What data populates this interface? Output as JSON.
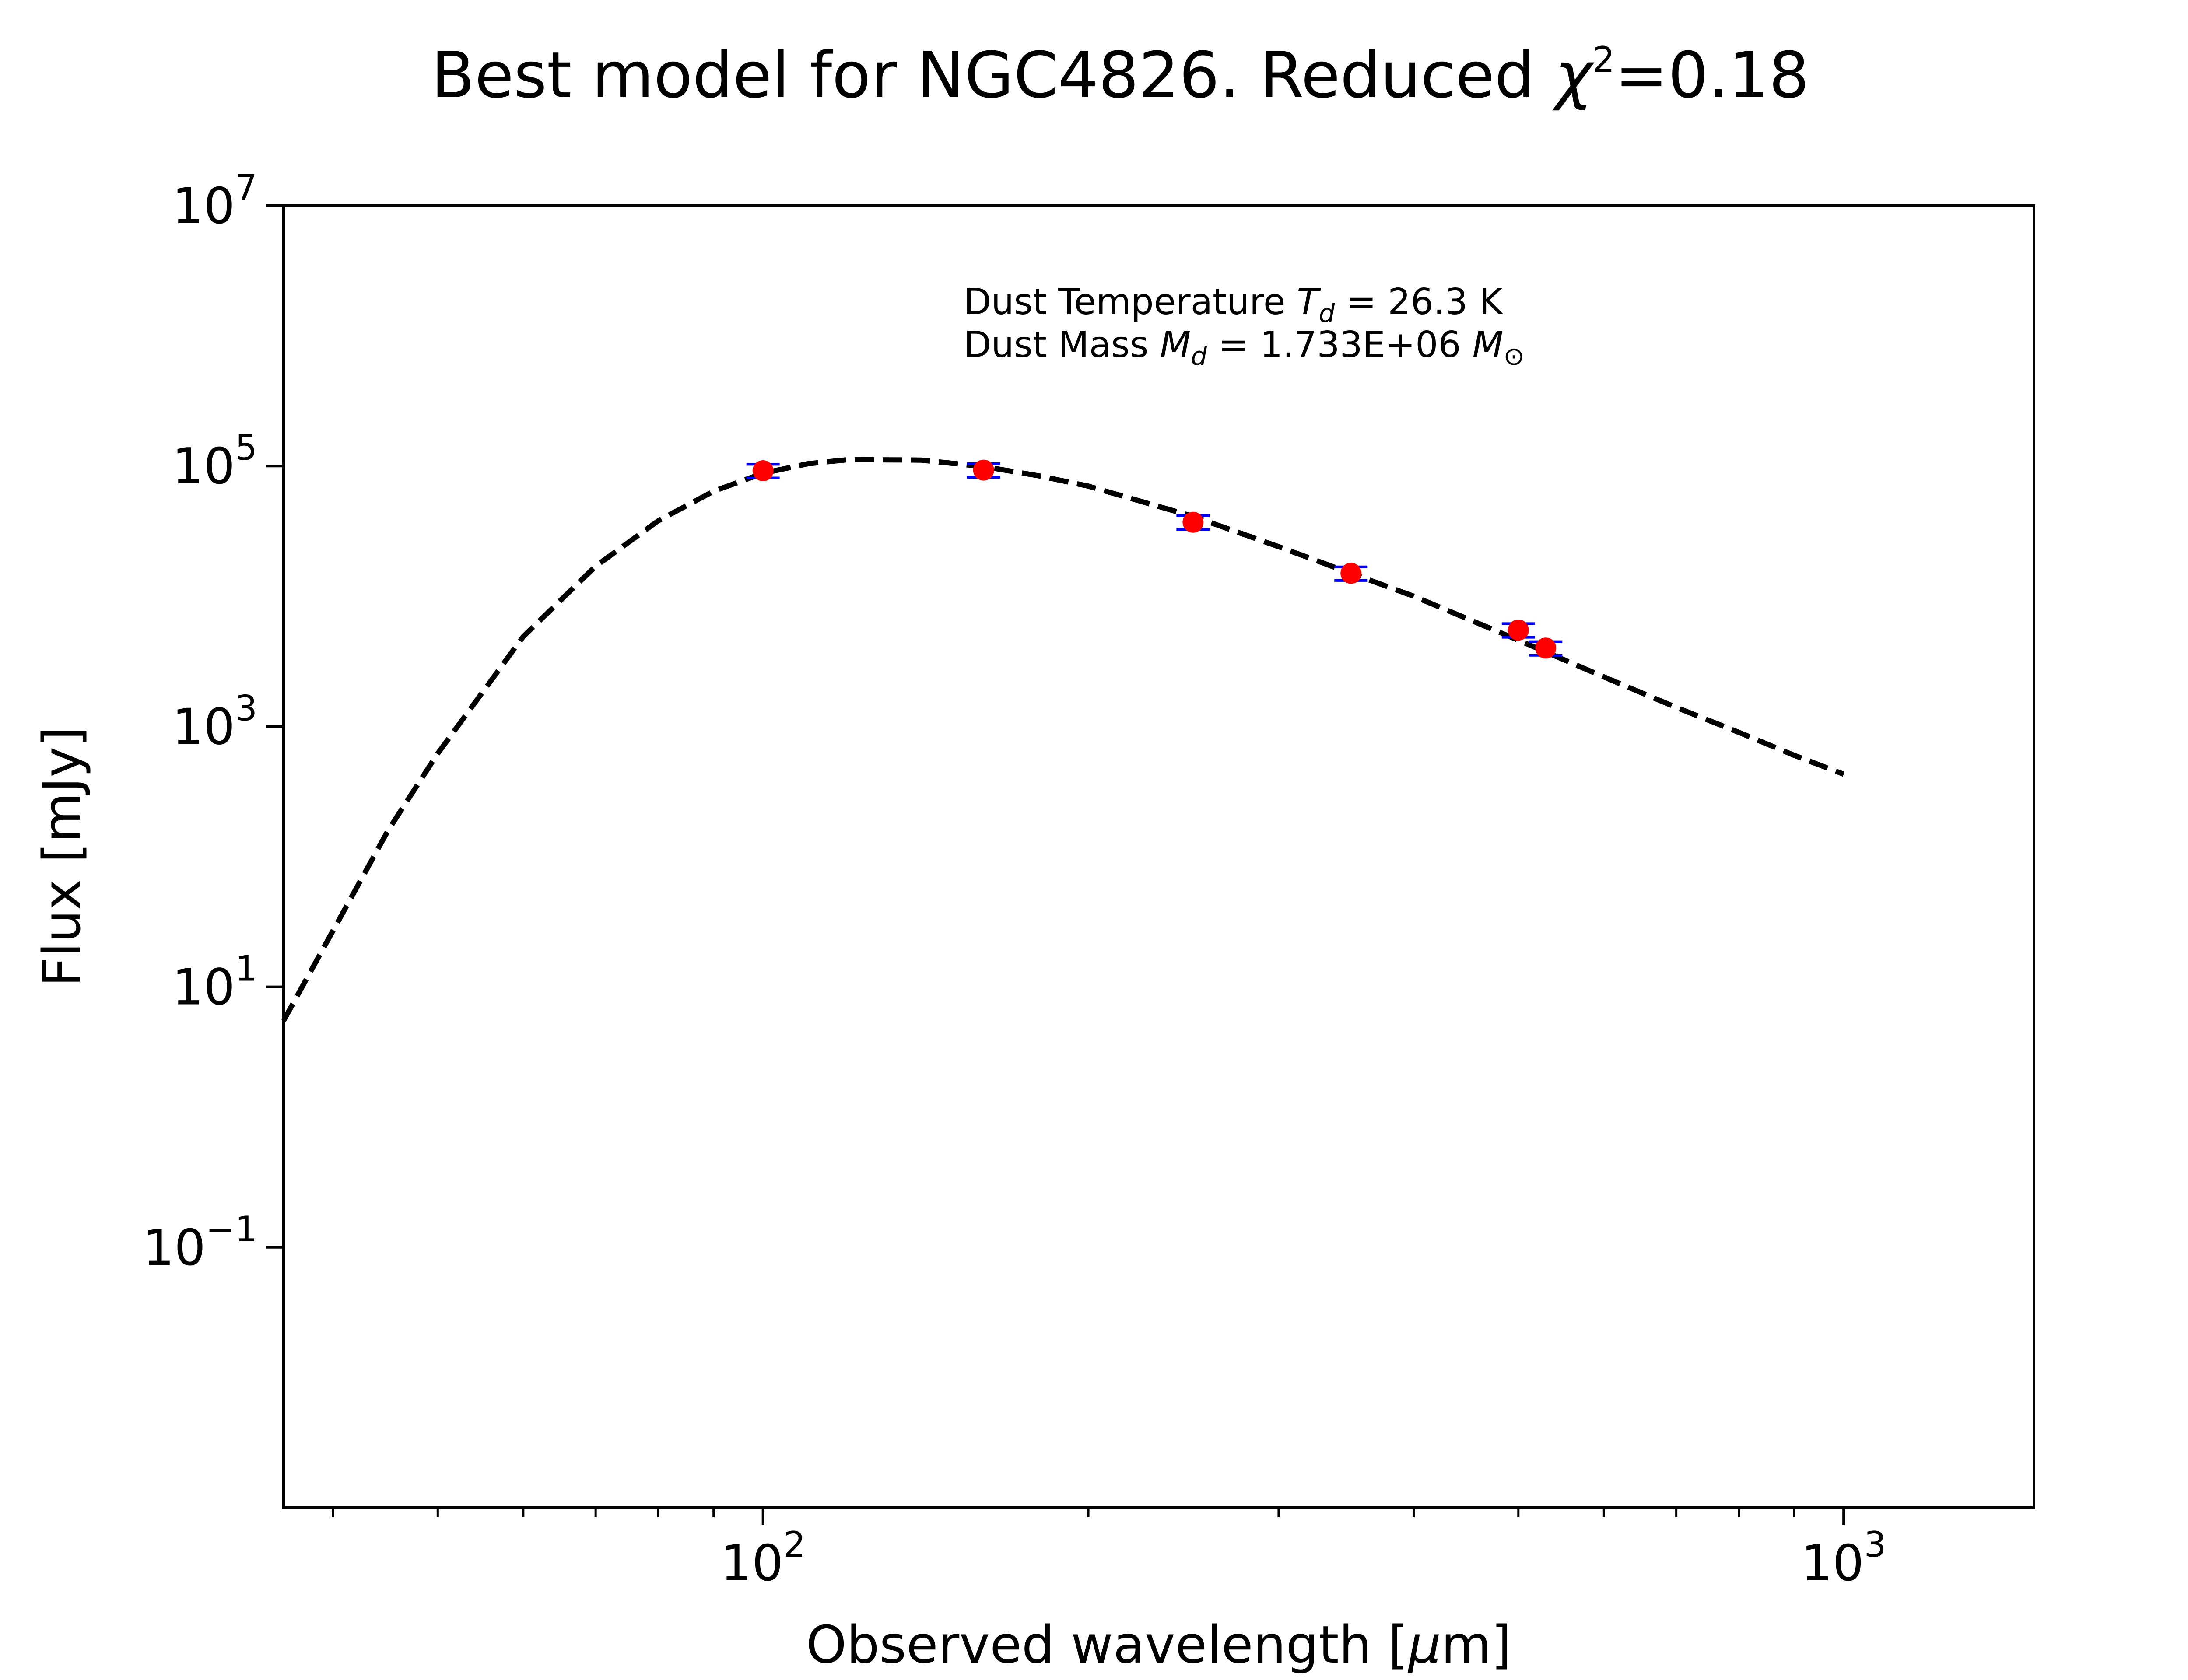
{
  "chart_data": {
    "type": "scatter",
    "title": {
      "main": "Best model for NGC4826. Reduced ",
      "symbol": "χ",
      "superscript": "2",
      "suffix": "=0.18"
    },
    "xlabel": {
      "text": "Observed wavelength [",
      "unit_symbol": "μ",
      "unit_rest": "m]"
    },
    "ylabel": "Flux [mJy]",
    "x_scale": "log",
    "y_scale": "log",
    "xlim": [
      36,
      1500
    ],
    "ylim": [
      0.001,
      10000000
    ],
    "x_ticks": [
      {
        "base": "10",
        "exp": "2",
        "value": 100
      },
      {
        "base": "10",
        "exp": "3",
        "value": 1000
      }
    ],
    "y_ticks": [
      {
        "base": "10",
        "exp": "−1",
        "value": 0.1
      },
      {
        "base": "10",
        "exp": "1",
        "value": 10
      },
      {
        "base": "10",
        "exp": "3",
        "value": 1000
      },
      {
        "base": "10",
        "exp": "5",
        "value": 100000
      },
      {
        "base": "10",
        "exp": "7",
        "value": 10000000
      }
    ],
    "x_minor_ticks": [
      40,
      50,
      60,
      70,
      80,
      90,
      200,
      300,
      400,
      500,
      600,
      700,
      800,
      900
    ],
    "grid": false,
    "annotations": [
      {
        "prefix": "Dust Temperature ",
        "symbol": "T",
        "sub": "d",
        "suffix": " = 26.3 K"
      },
      {
        "prefix": "Dust Mass ",
        "symbol": "M",
        "sub": "d",
        "suffix": " = 1.733E+06 ",
        "unit_symbol": "M",
        "unit_sub": "⊙"
      }
    ],
    "series": [
      {
        "kind": "model",
        "style": "dashed",
        "color": "#000000",
        "x": [
          36,
          40,
          45,
          50,
          60,
          70,
          80,
          90,
          100,
          110,
          120,
          140,
          160,
          180,
          200,
          250,
          300,
          350,
          400,
          500,
          600,
          700,
          800,
          900,
          1000
        ],
        "y": [
          5.5,
          27,
          160,
          620,
          4900,
          17000,
          38000,
          64000,
          88000,
          104000,
          112000,
          111000,
          99000,
          84000,
          70000,
          41000,
          24000,
          15000,
          10000,
          4600,
          2400,
          1400,
          900,
          600,
          430
        ]
      },
      {
        "kind": "observed",
        "marker": "circle",
        "color": "#ff0000",
        "errorbar_color": "#0000ff",
        "x": [
          100,
          160,
          250,
          350,
          500,
          530
        ],
        "y": [
          92000,
          93000,
          37000,
          15000,
          5500,
          4000
        ],
        "yerr_frac": 0.12
      }
    ],
    "colors": {
      "model": "#000000",
      "points": "#ff0000",
      "errorbars": "#0000ff",
      "axes": "#000000",
      "background": "#ffffff"
    }
  }
}
